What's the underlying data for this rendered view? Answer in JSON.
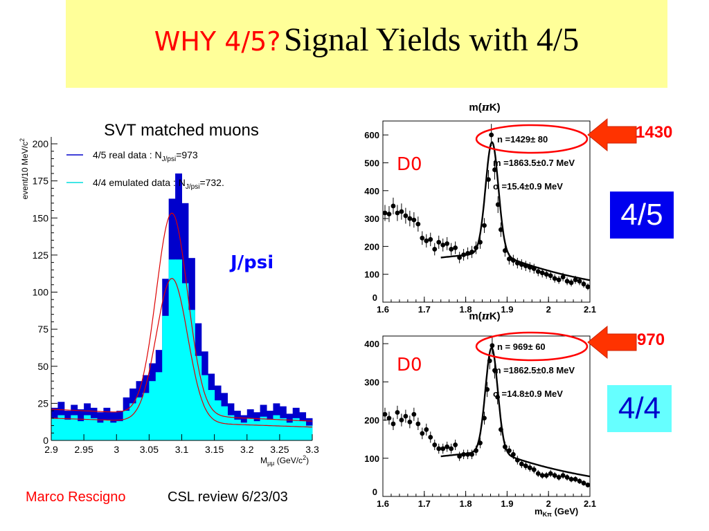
{
  "title": {
    "red": "WHY 4/5?",
    "black": "Signal Yields with 4/5"
  },
  "annotations": {
    "jpsi": "J/psi",
    "d0_top": "D0",
    "d0_bottom": "D0",
    "box_top": "4/5",
    "box_bottom": "4/4",
    "yield_top": "1430",
    "yield_bottom": "970"
  },
  "footer": {
    "author": "Marco Rescigno",
    "review": "CSL review 6/23/03"
  },
  "colors": {
    "title_bg": "#ffff99",
    "real": "#0000ee",
    "emulated": "#00ffff",
    "fit": "#dd0000",
    "highlight": "#ff0000",
    "box_45": "#0000ee",
    "box_44": "#66ffff"
  },
  "chart_data": [
    {
      "type": "bar",
      "title": "SVT matched muons",
      "xlabel": "M",
      "xlabel_sub": "μμ",
      "xlabel_unit": " (GeV/c",
      "xlabel_sup": "2",
      "xlabel_end": ")",
      "ylabel": "event/10 MeV/c",
      "ylabel_sup": "2",
      "xlim": [
        2.9,
        3.3
      ],
      "ylim": [
        0,
        200
      ],
      "x_ticks": [
        "2.9",
        "2.95",
        "3",
        "3.05",
        "3.1",
        "3.15",
        "3.2",
        "3.25",
        "3.3"
      ],
      "y_ticks": [
        "0",
        "25",
        "50",
        "75",
        "100",
        "125",
        "150",
        "175",
        "200"
      ],
      "bin_width": 0.01,
      "bin_edges_start": 2.9,
      "legend": [
        {
          "name": "4/5 real data : N",
          "sub": "J/psi",
          "rest": "=973",
          "color": "#0000cc"
        },
        {
          "name": "4/4 emulated data : N",
          "sub": "J/psi",
          "rest": "=732.",
          "color": "#00dddd"
        }
      ],
      "series": [
        {
          "name": "4/5 real data",
          "values": [
            22,
            26,
            20,
            24,
            21,
            25,
            22,
            19,
            22,
            19,
            20,
            29,
            35,
            40,
            44,
            52,
            61,
            109,
            163,
            180,
            160,
            123,
            79,
            60,
            45,
            37,
            32,
            25,
            20,
            17,
            21,
            19,
            24,
            20,
            25,
            23,
            18,
            22,
            19,
            15
          ]
        },
        {
          "name": "4/4 emulated data",
          "values": [
            15,
            17,
            14,
            17,
            13,
            17,
            15,
            12,
            14,
            12,
            13,
            20,
            25,
            29,
            32,
            40,
            46,
            84,
            122,
            122,
            106,
            88,
            57,
            44,
            34,
            27,
            23,
            17,
            14,
            12,
            15,
            13,
            16,
            14,
            17,
            15,
            12,
            15,
            13,
            10
          ]
        }
      ],
      "fits": [
        {
          "name": "4/5 fit",
          "amplitude": 136,
          "mean": 3.085,
          "sigma": 0.024,
          "bg_start": 21,
          "bg_end": 13
        },
        {
          "name": "4/4 fit",
          "amplitude": 97,
          "mean": 3.085,
          "sigma": 0.024,
          "bg_start": 15,
          "bg_end": 9
        }
      ]
    },
    {
      "type": "scatter",
      "title": "m(πK)",
      "xlabel": "",
      "xlim": [
        1.6,
        2.1
      ],
      "ylim": [
        0,
        650
      ],
      "x_ticks": [
        "1.6",
        "1.7",
        "1.8",
        "1.9",
        "2",
        "2.1"
      ],
      "y_ticks": [
        "0",
        "100",
        "200",
        "300",
        "400",
        "500",
        "600"
      ],
      "stats": {
        "n": "n =1429± 80",
        "m": "m =1863.5±0.7 MeV",
        "sigma": "σ =15.4±0.9 MeV"
      },
      "fit": {
        "amplitude": 395,
        "mean": 1.8635,
        "sigma": 0.0154,
        "bg_start": 160,
        "bg_end": 180,
        "bg_model": "line_then_falling"
      },
      "points": [
        {
          "x": 1.605,
          "y": 320
        },
        {
          "x": 1.615,
          "y": 316
        },
        {
          "x": 1.625,
          "y": 345
        },
        {
          "x": 1.635,
          "y": 320
        },
        {
          "x": 1.645,
          "y": 325
        },
        {
          "x": 1.655,
          "y": 310
        },
        {
          "x": 1.665,
          "y": 300
        },
        {
          "x": 1.675,
          "y": 295
        },
        {
          "x": 1.685,
          "y": 280
        },
        {
          "x": 1.695,
          "y": 230
        },
        {
          "x": 1.705,
          "y": 220
        },
        {
          "x": 1.715,
          "y": 225
        },
        {
          "x": 1.725,
          "y": 190
        },
        {
          "x": 1.735,
          "y": 215
        },
        {
          "x": 1.745,
          "y": 205
        },
        {
          "x": 1.755,
          "y": 210
        },
        {
          "x": 1.765,
          "y": 190
        },
        {
          "x": 1.775,
          "y": 195
        },
        {
          "x": 1.785,
          "y": 160
        },
        {
          "x": 1.795,
          "y": 170
        },
        {
          "x": 1.805,
          "y": 175
        },
        {
          "x": 1.815,
          "y": 180
        },
        {
          "x": 1.825,
          "y": 195
        },
        {
          "x": 1.835,
          "y": 215
        },
        {
          "x": 1.845,
          "y": 275
        },
        {
          "x": 1.855,
          "y": 440
        },
        {
          "x": 1.862,
          "y": 600
        },
        {
          "x": 1.87,
          "y": 475
        },
        {
          "x": 1.878,
          "y": 350
        },
        {
          "x": 1.885,
          "y": 260
        },
        {
          "x": 1.895,
          "y": 185
        },
        {
          "x": 1.905,
          "y": 155
        },
        {
          "x": 1.915,
          "y": 150
        },
        {
          "x": 1.925,
          "y": 140
        },
        {
          "x": 1.935,
          "y": 135
        },
        {
          "x": 1.945,
          "y": 130
        },
        {
          "x": 1.955,
          "y": 125
        },
        {
          "x": 1.965,
          "y": 120
        },
        {
          "x": 1.975,
          "y": 110
        },
        {
          "x": 1.985,
          "y": 105
        },
        {
          "x": 1.995,
          "y": 100
        },
        {
          "x": 2.005,
          "y": 95
        },
        {
          "x": 2.015,
          "y": 85
        },
        {
          "x": 2.025,
          "y": 80
        },
        {
          "x": 2.035,
          "y": 90
        },
        {
          "x": 2.045,
          "y": 75
        },
        {
          "x": 2.055,
          "y": 70
        },
        {
          "x": 2.065,
          "y": 80
        },
        {
          "x": 2.075,
          "y": 75
        },
        {
          "x": 2.085,
          "y": 65
        },
        {
          "x": 2.095,
          "y": 55
        }
      ]
    },
    {
      "type": "scatter",
      "title": "m(πK)",
      "xlabel": "m",
      "xlabel_sub": "Kπ",
      "xlabel_unit": " (GeV)",
      "xlim": [
        1.6,
        2.1
      ],
      "ylim": [
        0,
        420
      ],
      "x_ticks": [
        "1.6",
        "1.7",
        "1.8",
        "1.9",
        "2",
        "2.1"
      ],
      "y_ticks": [
        "0",
        "100",
        "200",
        "300",
        "400"
      ],
      "stats": {
        "n": "n = 969± 60",
        "m": "m =1862.5±0.8 MeV",
        "sigma": "σ =14.8±0.9 MeV"
      },
      "fit": {
        "amplitude": 270,
        "mean": 1.8625,
        "sigma": 0.0148,
        "bg_start": 105,
        "bg_end": 120,
        "bg_model": "line_then_falling"
      },
      "points": [
        {
          "x": 1.605,
          "y": 215
        },
        {
          "x": 1.615,
          "y": 205
        },
        {
          "x": 1.625,
          "y": 190
        },
        {
          "x": 1.635,
          "y": 220
        },
        {
          "x": 1.645,
          "y": 200
        },
        {
          "x": 1.655,
          "y": 210
        },
        {
          "x": 1.665,
          "y": 195
        },
        {
          "x": 1.675,
          "y": 215
        },
        {
          "x": 1.685,
          "y": 190
        },
        {
          "x": 1.695,
          "y": 165
        },
        {
          "x": 1.705,
          "y": 175
        },
        {
          "x": 1.715,
          "y": 155
        },
        {
          "x": 1.725,
          "y": 135
        },
        {
          "x": 1.735,
          "y": 125
        },
        {
          "x": 1.745,
          "y": 125
        },
        {
          "x": 1.755,
          "y": 130
        },
        {
          "x": 1.765,
          "y": 125
        },
        {
          "x": 1.775,
          "y": 135
        },
        {
          "x": 1.785,
          "y": 105
        },
        {
          "x": 1.795,
          "y": 110
        },
        {
          "x": 1.805,
          "y": 110
        },
        {
          "x": 1.815,
          "y": 110
        },
        {
          "x": 1.825,
          "y": 120
        },
        {
          "x": 1.835,
          "y": 140
        },
        {
          "x": 1.845,
          "y": 205
        },
        {
          "x": 1.852,
          "y": 280
        },
        {
          "x": 1.858,
          "y": 355
        },
        {
          "x": 1.864,
          "y": 395
        },
        {
          "x": 1.87,
          "y": 330
        },
        {
          "x": 1.877,
          "y": 260
        },
        {
          "x": 1.885,
          "y": 175
        },
        {
          "x": 1.895,
          "y": 130
        },
        {
          "x": 1.905,
          "y": 120
        },
        {
          "x": 1.915,
          "y": 110
        },
        {
          "x": 1.925,
          "y": 95
        },
        {
          "x": 1.935,
          "y": 85
        },
        {
          "x": 1.945,
          "y": 80
        },
        {
          "x": 1.955,
          "y": 75
        },
        {
          "x": 1.965,
          "y": 70
        },
        {
          "x": 1.975,
          "y": 60
        },
        {
          "x": 1.985,
          "y": 55
        },
        {
          "x": 1.995,
          "y": 55
        },
        {
          "x": 2.005,
          "y": 60
        },
        {
          "x": 2.015,
          "y": 55
        },
        {
          "x": 2.025,
          "y": 50
        },
        {
          "x": 2.035,
          "y": 55
        },
        {
          "x": 2.045,
          "y": 50
        },
        {
          "x": 2.055,
          "y": 45
        },
        {
          "x": 2.065,
          "y": 45
        },
        {
          "x": 2.075,
          "y": 40
        },
        {
          "x": 2.085,
          "y": 35
        },
        {
          "x": 2.095,
          "y": 30
        }
      ]
    }
  ]
}
